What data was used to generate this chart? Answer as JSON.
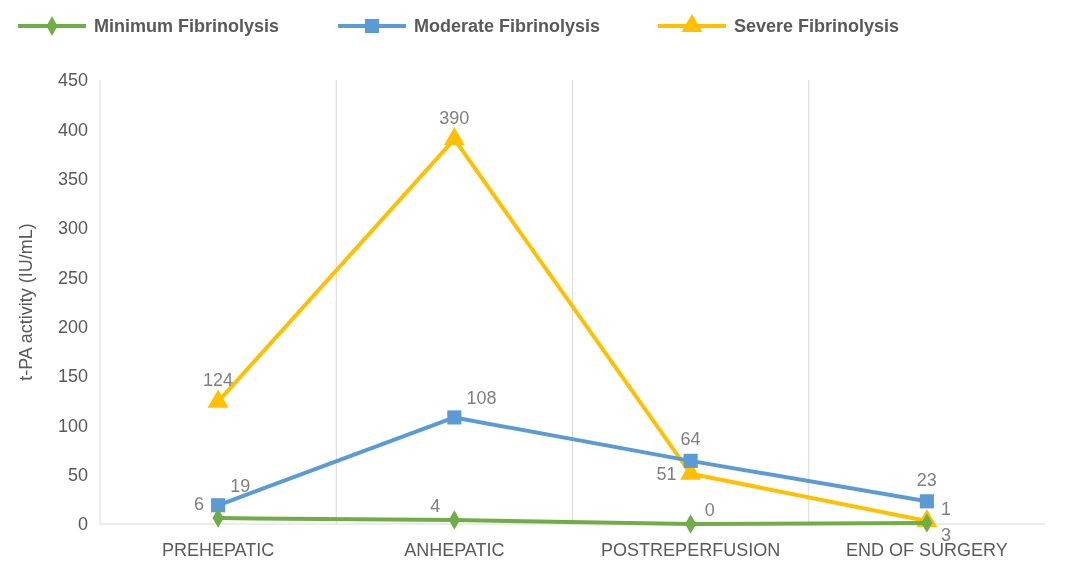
{
  "chart_data": {
    "type": "line",
    "ylabel": "t-PA activity (IU/mL)",
    "categories": [
      "PREHEPATIC",
      "ANHEPATIC",
      "POSTREPERFUSION",
      "END OF SURGERY"
    ],
    "series": [
      {
        "name": "Minimum Fibrinolysis",
        "color": "#70ad47",
        "marker": "diamond",
        "values": [
          6,
          4,
          0,
          1
        ]
      },
      {
        "name": "Moderate Fibrinolysis",
        "color": "#5b9bd5",
        "marker": "square",
        "values": [
          19,
          108,
          64,
          23
        ]
      },
      {
        "name": "Severe Fibrinolysis",
        "color": "#ffc000",
        "marker": "triangle",
        "values": [
          124,
          390,
          51,
          3
        ]
      }
    ],
    "ylim": [
      0,
      450
    ],
    "yticks": [
      0,
      50,
      100,
      150,
      200,
      250,
      300,
      350,
      400,
      450
    ],
    "grid": "x",
    "legend": "top",
    "data_labels": true
  }
}
